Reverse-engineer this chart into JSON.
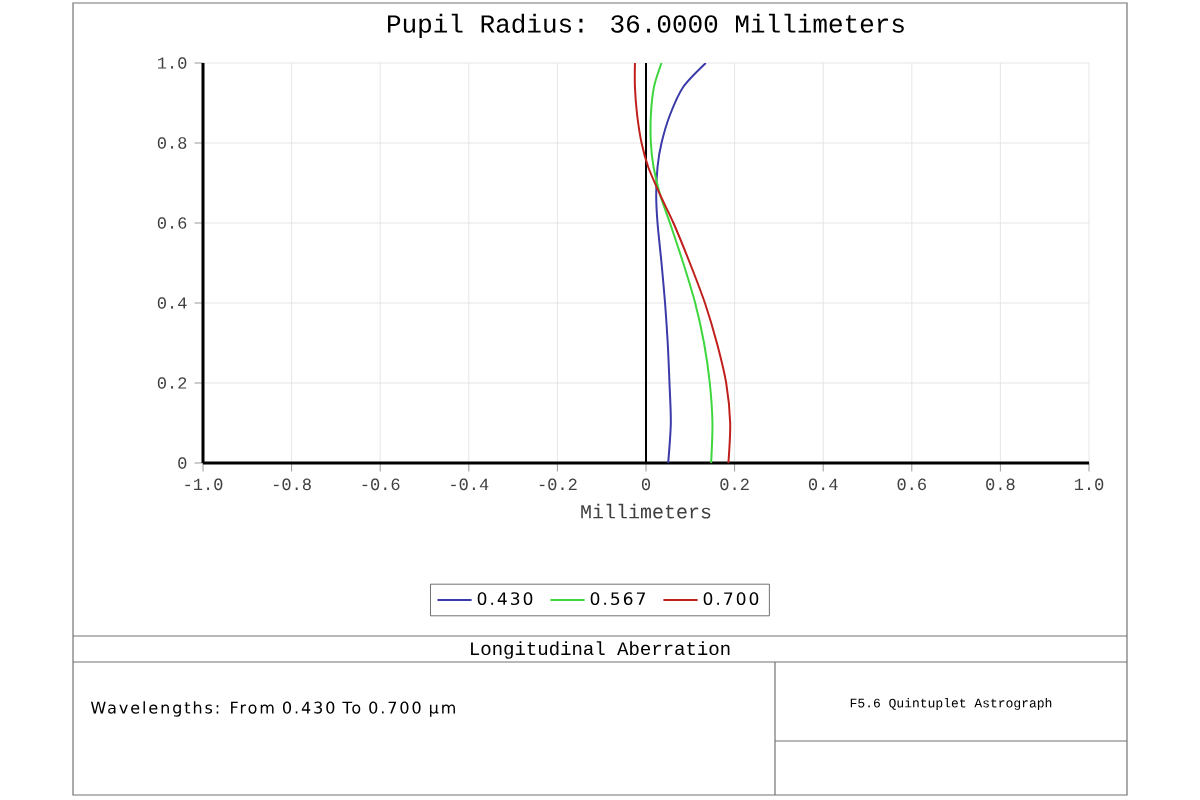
{
  "chart_data": {
    "type": "line",
    "title": "Pupil Radius: 36.0000 Millimeters",
    "xlabel": "Millimeters",
    "xlim": [
      -1,
      1
    ],
    "ylim": [
      0,
      1
    ],
    "xticks": [
      {
        "value": -1,
        "label": "-1.0"
      },
      -0.8,
      -0.6,
      -0.4,
      -0.2,
      {
        "value": 0,
        "label": "0"
      },
      0.2,
      0.4,
      0.6,
      0.8,
      {
        "value": 1,
        "label": "1.0"
      }
    ],
    "yticks": [
      {
        "value": 0,
        "label": "0"
      },
      0.2,
      0.4,
      0.6,
      0.8,
      {
        "value": 1,
        "label": "1.0"
      }
    ],
    "grid": true,
    "legend": "bottom",
    "marker": "none",
    "line_style": "solid",
    "ref_lines": [
      {
        "axis": "x",
        "value": 0,
        "color": "#000000"
      }
    ],
    "series": [
      {
        "name": "0.430",
        "color": "#3a3aa8",
        "x": [
          0.05,
          0.056,
          0.053,
          0.049,
          0.043,
          0.035,
          0.026,
          0.023,
          0.026,
          0.035,
          0.054,
          0.084,
          0.135
        ],
        "values": [
          0,
          0.1,
          0.2,
          0.3,
          0.4,
          0.5,
          0.6,
          0.67,
          0.74,
          0.8,
          0.87,
          0.94,
          1.0
        ]
      },
      {
        "name": "0.567",
        "color": "#3ed63e",
        "x": [
          0.147,
          0.15,
          0.144,
          0.131,
          0.111,
          0.084,
          0.054,
          0.032,
          0.017,
          0.011,
          0.011,
          0.018,
          0.035
        ],
        "values": [
          0,
          0.1,
          0.2,
          0.3,
          0.4,
          0.5,
          0.6,
          0.67,
          0.74,
          0.8,
          0.87,
          0.94,
          1.0
        ]
      },
      {
        "name": "0.700",
        "color": "#c0201c",
        "x": [
          0.186,
          0.19,
          0.181,
          0.16,
          0.133,
          0.099,
          0.062,
          0.032,
          0.005,
          -0.01,
          -0.02,
          -0.025,
          -0.025
        ],
        "values": [
          0,
          0.1,
          0.2,
          0.3,
          0.4,
          0.5,
          0.6,
          0.67,
          0.74,
          0.8,
          0.87,
          0.94,
          1.0
        ]
      }
    ],
    "annotations": [
      "Longitudinal Aberration",
      "Wavelengths: From 0.430 To 0.700 µm",
      "F5.6 Quintuplet Astrograph"
    ]
  }
}
